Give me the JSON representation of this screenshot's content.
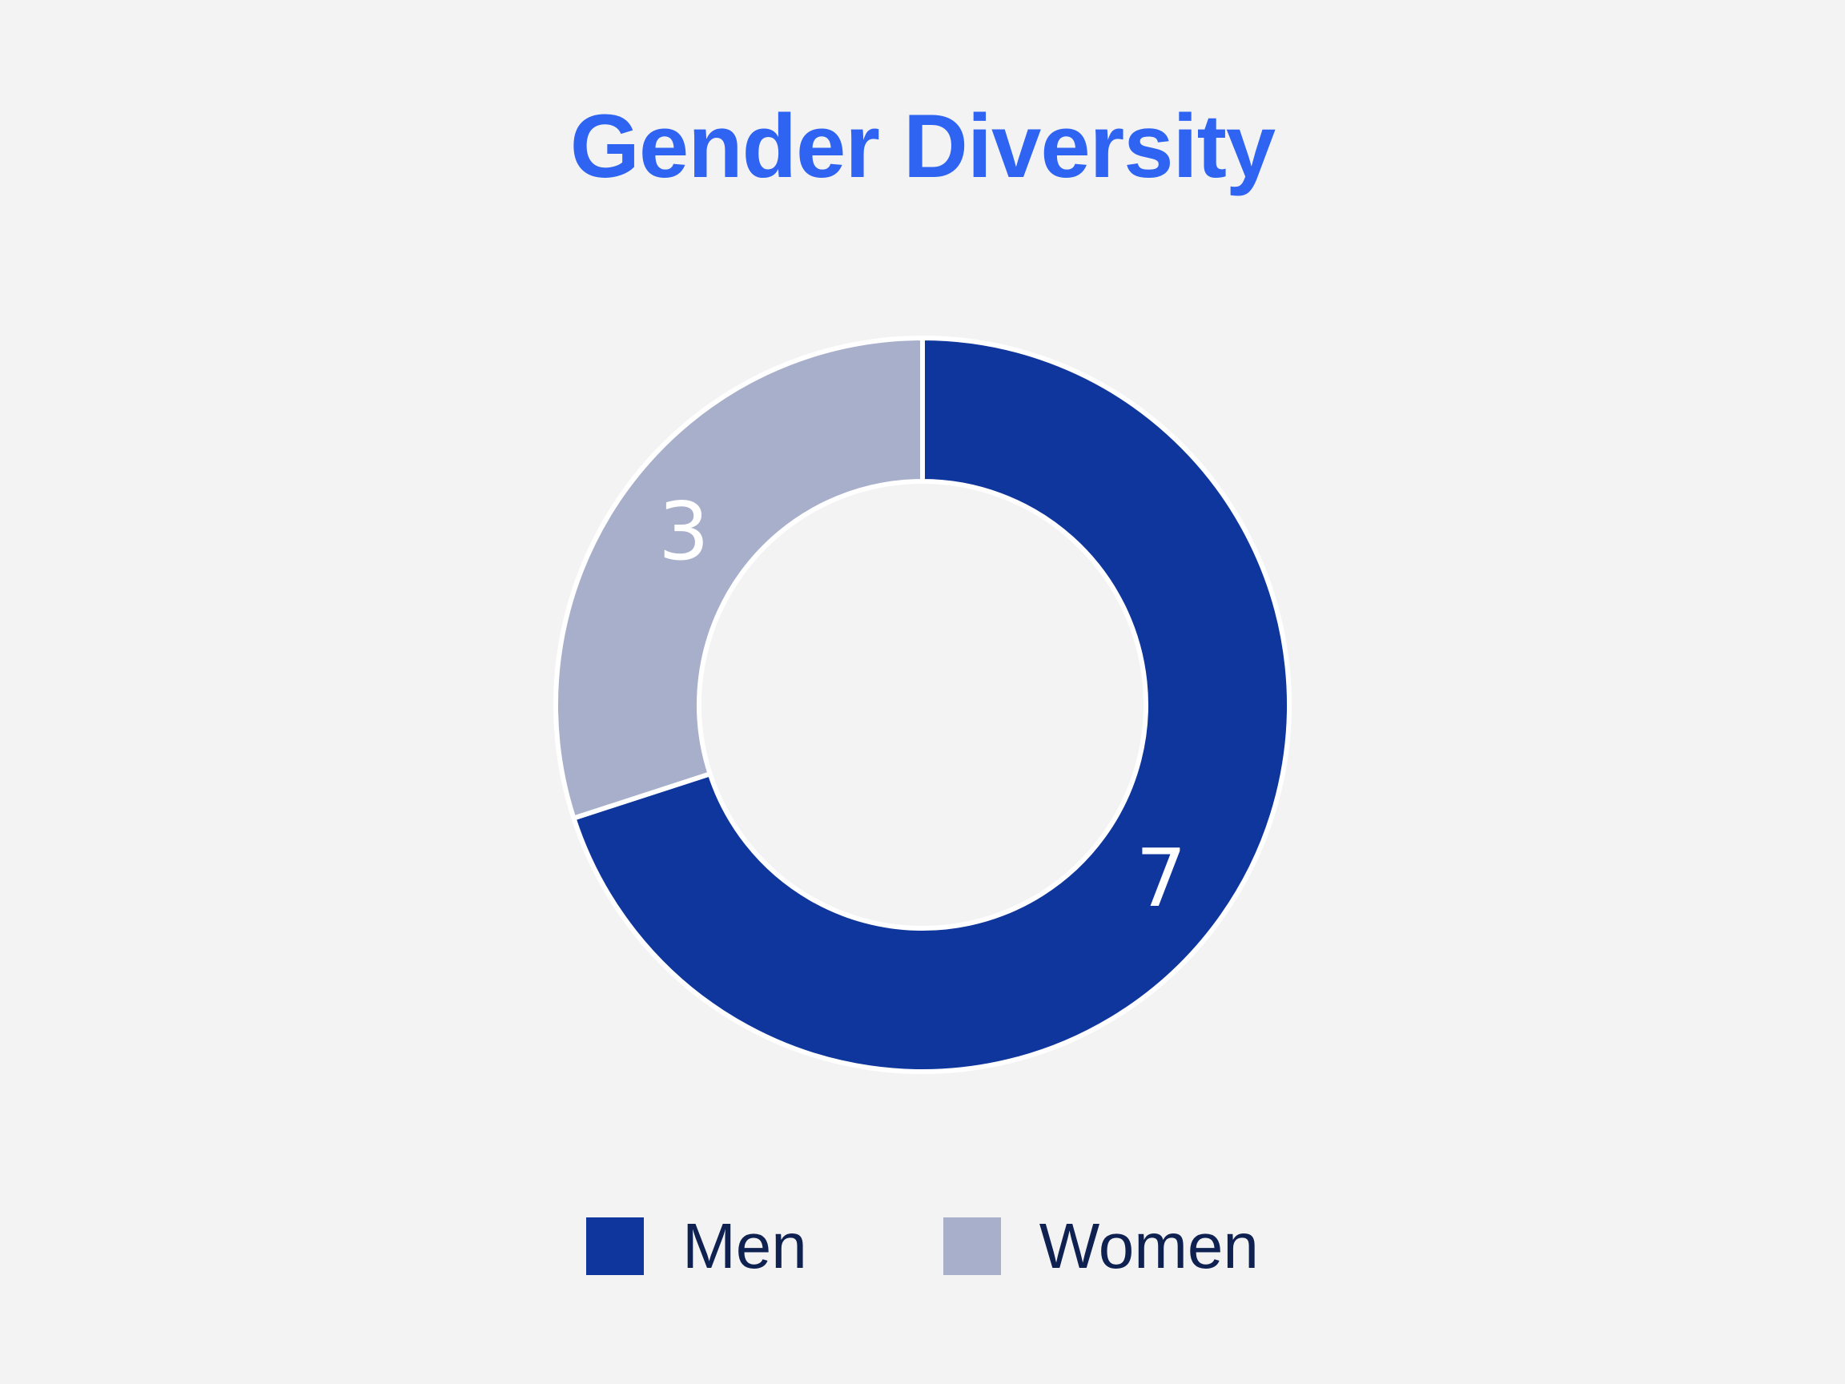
{
  "page": {
    "background_color": "#F3F3F4"
  },
  "title": {
    "text": "Gender Diversity",
    "color": "#2E64F1"
  },
  "chart_data": {
    "type": "pie",
    "variant": "donut",
    "title": "Gender Diversity",
    "categories": [
      "Men",
      "Women"
    ],
    "values": [
      7,
      3
    ],
    "colors": [
      "#0E369C",
      "#A7AFCB"
    ],
    "data_labels": [
      "7",
      "3"
    ],
    "data_label_color": "#FFFFFF",
    "start_angle_deg": -90,
    "direction": "clockwise",
    "inner_radius_ratio": 0.61,
    "divider_color": "#FFFFFF",
    "legend_position": "bottom",
    "legend_text_color": "#0E2150",
    "legend": [
      {
        "label": "Men",
        "color": "#0E369C"
      },
      {
        "label": "Women",
        "color": "#A7AFCB"
      }
    ]
  }
}
